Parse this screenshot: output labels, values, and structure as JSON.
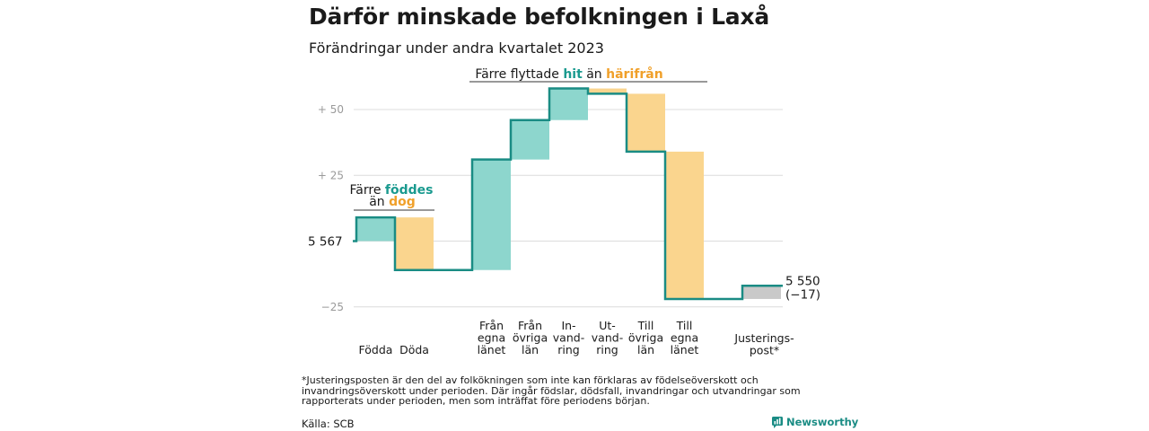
{
  "title": "Därför minskade befolkningen i Laxå",
  "subtitle": "Förändringar under andra kvartalet 2023",
  "footnote": "*Justeringsposten är den del av folkökningen som inte kan förklaras av födelseöverskott och invandringsöverskott under perioden. Där ingår födslar, dödsfall, invandringar och utvandringar som rapporterats under perioden, men som inträffat före periodens början.",
  "source": "Källa: SCB",
  "brand": "Newsworthy",
  "colors": {
    "increase": "#8dd6cd",
    "decrease": "#fad58e",
    "adjustment": "#c9c9c9",
    "line": "#1a8c84",
    "teal_text": "#1a9a8f",
    "orange_text": "#f0a02a"
  },
  "annotations": {
    "births": {
      "line1_prefix": "Färre ",
      "line1_highlight": "föddes",
      "line2_prefix": "än ",
      "line2_highlight": "dog"
    },
    "migration": {
      "prefix": "Färre flyttade ",
      "highlight1": "hit",
      "middle": " än ",
      "highlight2": "härifrån"
    }
  },
  "chart_data": {
    "type": "waterfall",
    "title": "Därför minskade befolkningen i Laxå",
    "subtitle": "Förändringar under andra kvartalet 2023",
    "start_value": 5567,
    "start_label": "5  567",
    "end_value": 5550,
    "end_label": "5 550",
    "end_change_label": "(−17)",
    "yticks": [
      {
        "value": 50,
        "label": "+  50"
      },
      {
        "value": 25,
        "label": "+  25"
      },
      {
        "value": -25,
        "label": "−25"
      }
    ],
    "ylim": [
      -25,
      60
    ],
    "grid": true,
    "categories": [
      {
        "label": [
          "Födda"
        ],
        "change": 9,
        "kind": "increase"
      },
      {
        "label": [
          "Döda"
        ],
        "change": -20,
        "kind": "decrease"
      },
      {
        "label": [
          "Från",
          "egna",
          "länet"
        ],
        "change": 42,
        "kind": "increase"
      },
      {
        "label": [
          "Från",
          "övriga",
          "län"
        ],
        "change": 15,
        "kind": "increase"
      },
      {
        "label": [
          "In-",
          "vand-",
          "ring"
        ],
        "change": 12,
        "kind": "increase"
      },
      {
        "label": [
          "Ut-",
          "vand-",
          "ring"
        ],
        "change": -2,
        "kind": "decrease"
      },
      {
        "label": [
          "Till",
          "övriga",
          "län"
        ],
        "change": -22,
        "kind": "decrease"
      },
      {
        "label": [
          "Till",
          "egna",
          "länet"
        ],
        "change": -56,
        "kind": "decrease"
      },
      {
        "label": [
          "Justerings-",
          "post*"
        ],
        "change": 5,
        "kind": "adjustment"
      }
    ]
  }
}
